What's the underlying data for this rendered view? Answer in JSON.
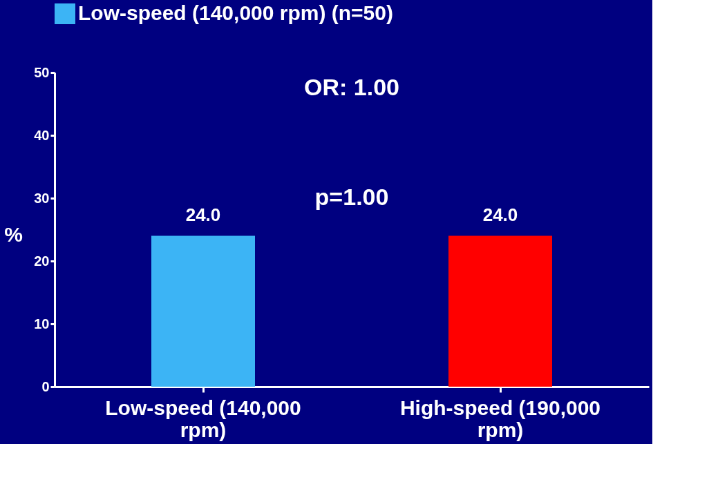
{
  "chart_data": {
    "type": "bar",
    "categories": [
      "Low-speed (140,000 rpm)",
      "High-speed (190,000 rpm)"
    ],
    "series": [
      {
        "name": "Low-speed (140,000 rpm)  (n=50)",
        "color": "#3cb4f5",
        "values": [
          24.0,
          null
        ],
        "value_labels": [
          "24.0",
          null
        ]
      },
      {
        "color": "#ff0000",
        "values": [
          null,
          24.0
        ],
        "value_labels": [
          null,
          "24.0"
        ]
      }
    ],
    "ylabel": "%",
    "ylim": [
      0,
      50
    ],
    "yticks": [
      0,
      10,
      20,
      30,
      40,
      50
    ],
    "grid": false,
    "legend": "top",
    "annotations": [
      "OR: 1.00",
      "p=1.00"
    ]
  }
}
